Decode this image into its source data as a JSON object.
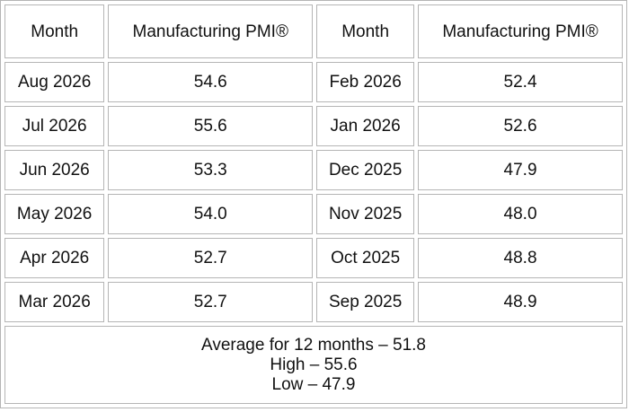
{
  "table": {
    "headers": [
      "Month",
      "Manufacturing PMI®",
      "Month",
      "Manufacturing PMI®"
    ],
    "rows": [
      [
        "Aug 2026",
        "54.6",
        "Feb 2026",
        "52.4"
      ],
      [
        "Jul 2026",
        "55.6",
        "Jan 2026",
        "52.6"
      ],
      [
        "Jun 2026",
        "53.3",
        "Dec 2025",
        "47.9"
      ],
      [
        "May 2026",
        "54.0",
        "Nov 2025",
        "48.0"
      ],
      [
        "Apr 2026",
        "52.7",
        "Oct 2025",
        "48.8"
      ],
      [
        "Mar 2026",
        "52.7",
        "Sep 2025",
        "48.9"
      ]
    ],
    "footer": [
      "Average for 12 months – 51.8",
      "High – 55.6",
      "Low – 47.9"
    ]
  }
}
